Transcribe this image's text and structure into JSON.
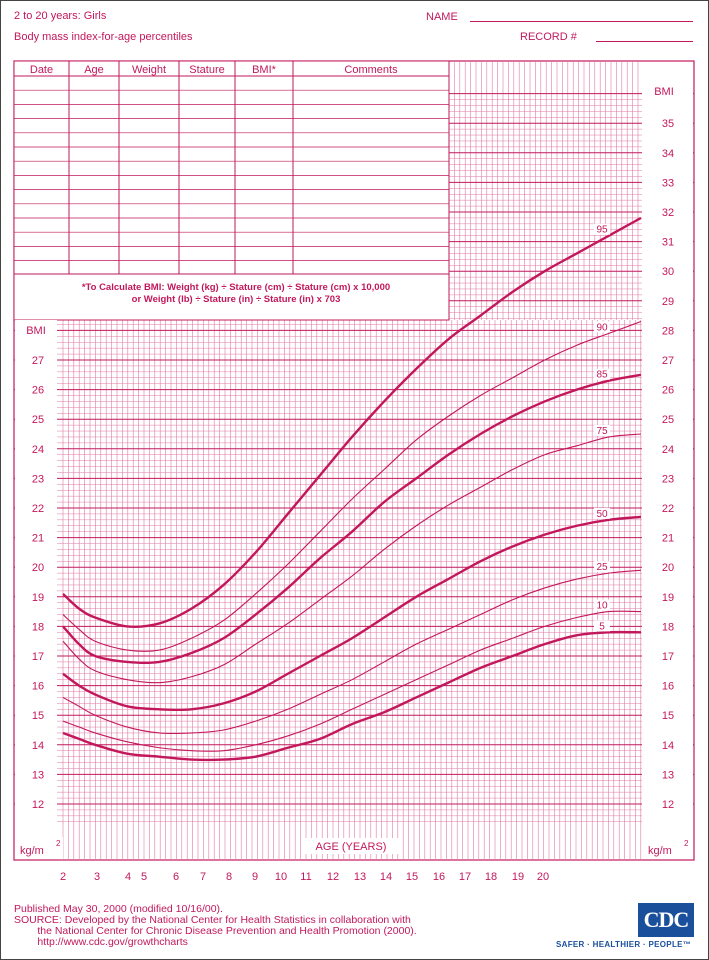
{
  "header": {
    "title": "2 to 20 years: Girls",
    "subtitle": "Body mass index-for-age percentiles",
    "name_label": "NAME",
    "record_label": "RECORD #"
  },
  "table": {
    "columns": [
      "Date",
      "Age",
      "Weight",
      "Stature",
      "BMI*",
      "Comments"
    ]
  },
  "formula": {
    "line1": "*To Calculate BMI: Weight (kg) ÷ Stature (cm) ÷ Stature (cm) x 10,000",
    "line2": "or Weight (lb) ÷ Stature (in) ÷ Stature (in) x 703"
  },
  "footer": {
    "published": "Published May 30, 2000 (modified 10/16/00).",
    "source_1": "SOURCE: Developed by the National Center for Health Statistics in collaboration with",
    "source_2": "        the National Center for Chronic Disease Prevention and Health Promotion (2000).",
    "url": "        http://www.cdc.gov/growthcharts",
    "tagline": "SAFER · HEALTHIER · PEOPLE™"
  },
  "colors": {
    "accent": "#c2185b"
  },
  "chart_data": {
    "type": "line",
    "title": "Body mass index-for-age percentiles",
    "xlabel": "AGE (YEARS)",
    "ylabel": "BMI",
    "x_unit_label": "kg/m",
    "x_unit_sup": "2",
    "xlim": [
      2,
      20
    ],
    "ylim_left": [
      12,
      28
    ],
    "ylim_right": [
      12,
      36
    ],
    "x_ticks": [
      2,
      3,
      4,
      5,
      6,
      7,
      8,
      9,
      10,
      11,
      12,
      13,
      14,
      15,
      16,
      17,
      18,
      19,
      20
    ],
    "y_ticks_left": [
      12,
      13,
      14,
      15,
      16,
      17,
      18,
      19,
      20,
      21,
      22,
      23,
      24,
      25,
      26,
      27
    ],
    "y_ticks_right": [
      12,
      13,
      14,
      15,
      16,
      17,
      18,
      19,
      20,
      21,
      22,
      23,
      24,
      25,
      26,
      27,
      28,
      29,
      30,
      31,
      32,
      33,
      34,
      35
    ],
    "axis_title_left": "BMI",
    "axis_title_right": "BMI",
    "x": [
      2,
      2.5,
      3,
      4,
      5,
      6,
      7,
      8,
      9,
      10,
      11,
      12,
      13,
      14,
      15,
      16,
      17,
      18,
      19,
      20
    ],
    "series": [
      {
        "name": "95",
        "major": true,
        "values": [
          19.1,
          18.6,
          18.3,
          18.0,
          18.1,
          18.6,
          19.4,
          20.5,
          21.8,
          23.1,
          24.4,
          25.6,
          26.7,
          27.7,
          28.5,
          29.3,
          30.0,
          30.6,
          31.2,
          31.8
        ]
      },
      {
        "name": "90",
        "major": false,
        "values": [
          18.4,
          17.9,
          17.5,
          17.2,
          17.2,
          17.6,
          18.2,
          19.1,
          20.1,
          21.2,
          22.3,
          23.3,
          24.3,
          25.1,
          25.8,
          26.4,
          27.0,
          27.5,
          27.9,
          28.3
        ]
      },
      {
        "name": "85",
        "major": true,
        "values": [
          18.0,
          17.4,
          17.0,
          16.8,
          16.8,
          17.1,
          17.6,
          18.4,
          19.3,
          20.3,
          21.2,
          22.2,
          23.0,
          23.8,
          24.5,
          25.1,
          25.6,
          26.0,
          26.3,
          26.5
        ]
      },
      {
        "name": "75",
        "major": false,
        "values": [
          17.5,
          16.9,
          16.5,
          16.2,
          16.1,
          16.3,
          16.7,
          17.4,
          18.1,
          18.9,
          19.7,
          20.6,
          21.4,
          22.1,
          22.7,
          23.3,
          23.8,
          24.1,
          24.4,
          24.5
        ]
      },
      {
        "name": "50",
        "major": true,
        "values": [
          16.4,
          16.0,
          15.7,
          15.3,
          15.2,
          15.2,
          15.4,
          15.8,
          16.4,
          17.0,
          17.6,
          18.3,
          19.0,
          19.6,
          20.2,
          20.7,
          21.1,
          21.4,
          21.6,
          21.7
        ]
      },
      {
        "name": "25",
        "major": false,
        "values": [
          15.6,
          15.3,
          15.0,
          14.6,
          14.4,
          14.4,
          14.5,
          14.8,
          15.2,
          15.7,
          16.2,
          16.8,
          17.4,
          17.9,
          18.4,
          18.9,
          19.3,
          19.6,
          19.8,
          19.9
        ]
      },
      {
        "name": "10",
        "major": false,
        "values": [
          14.8,
          14.6,
          14.4,
          14.1,
          13.9,
          13.8,
          13.8,
          14.0,
          14.3,
          14.7,
          15.2,
          15.7,
          16.2,
          16.7,
          17.2,
          17.6,
          18.0,
          18.3,
          18.5,
          18.5
        ]
      },
      {
        "name": "5",
        "major": true,
        "values": [
          14.4,
          14.2,
          14.0,
          13.7,
          13.6,
          13.5,
          13.5,
          13.6,
          13.9,
          14.2,
          14.7,
          15.1,
          15.6,
          16.1,
          16.6,
          17.0,
          17.4,
          17.7,
          17.8,
          17.8
        ]
      }
    ]
  }
}
